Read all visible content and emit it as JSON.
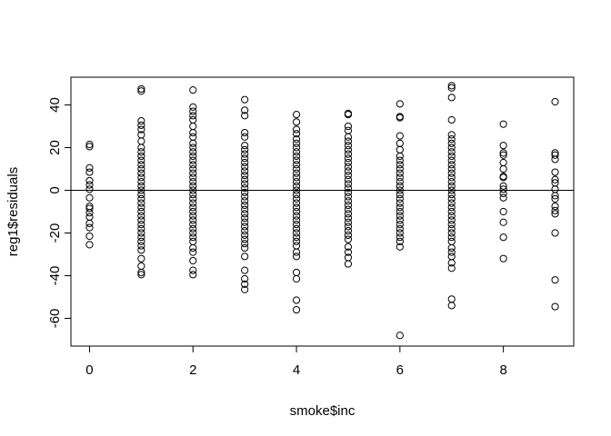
{
  "chart_data": {
    "type": "scatter",
    "title": "",
    "xlabel": "smoke$inc",
    "ylabel": "reg1$residuals",
    "xlim": [
      -0.36,
      9.36
    ],
    "ylim": [
      -73,
      53
    ],
    "x_ticks": [
      0,
      2,
      4,
      6,
      8
    ],
    "x_tick_labels": [
      "0",
      "2",
      "4",
      "6",
      "8"
    ],
    "y_ticks": [
      -60,
      -40,
      -20,
      0,
      20,
      40
    ],
    "y_tick_labels": [
      "-60",
      "-40",
      "-20",
      "0",
      "20",
      "40"
    ],
    "reference_line": {
      "y": 0
    },
    "grid": false,
    "legend": "none",
    "marker": "open-circle",
    "series": [
      {
        "points": [
          [
            0,
            21.5
          ],
          [
            0,
            20.5
          ],
          [
            0,
            10.5
          ],
          [
            0,
            8.5
          ],
          [
            0,
            4.5
          ],
          [
            0,
            2.5
          ],
          [
            0,
            0.5
          ],
          [
            0,
            -3.5
          ],
          [
            0,
            -7.5
          ],
          [
            0,
            -8.5
          ],
          [
            0,
            -10.5
          ],
          [
            0,
            -12.5
          ],
          [
            0,
            -15.5
          ],
          [
            0,
            -17.5
          ],
          [
            0,
            -21.5
          ],
          [
            0,
            -25.5
          ],
          [
            1,
            47.5
          ],
          [
            1,
            46.5
          ],
          [
            1,
            32.5
          ],
          [
            1,
            30.5
          ],
          [
            1,
            28.5
          ],
          [
            1,
            26
          ],
          [
            1,
            23
          ],
          [
            1,
            20
          ],
          [
            1,
            18
          ],
          [
            1,
            16
          ],
          [
            1,
            14
          ],
          [
            1,
            12
          ],
          [
            1,
            10
          ],
          [
            1,
            8
          ],
          [
            1,
            6
          ],
          [
            1,
            4
          ],
          [
            1,
            2
          ],
          [
            1,
            0
          ],
          [
            1,
            -2
          ],
          [
            1,
            -4
          ],
          [
            1,
            -6
          ],
          [
            1,
            -8
          ],
          [
            1,
            -10
          ],
          [
            1,
            -12
          ],
          [
            1,
            -14
          ],
          [
            1,
            -16
          ],
          [
            1,
            -18
          ],
          [
            1,
            -20
          ],
          [
            1,
            -22
          ],
          [
            1,
            -24
          ],
          [
            1,
            -26
          ],
          [
            1,
            -28
          ],
          [
            1,
            -32
          ],
          [
            1,
            -35.5
          ],
          [
            1,
            -38.5
          ],
          [
            1,
            -39.5
          ],
          [
            2,
            47
          ],
          [
            2,
            39
          ],
          [
            2,
            37
          ],
          [
            2,
            35
          ],
          [
            2,
            33
          ],
          [
            2,
            30
          ],
          [
            2,
            27
          ],
          [
            2,
            25
          ],
          [
            2,
            22
          ],
          [
            2,
            20
          ],
          [
            2,
            18
          ],
          [
            2,
            16
          ],
          [
            2,
            14
          ],
          [
            2,
            12
          ],
          [
            2,
            10
          ],
          [
            2,
            8
          ],
          [
            2,
            6
          ],
          [
            2,
            4
          ],
          [
            2,
            2
          ],
          [
            2,
            0
          ],
          [
            2,
            -2
          ],
          [
            2,
            -4
          ],
          [
            2,
            -6
          ],
          [
            2,
            -8
          ],
          [
            2,
            -10
          ],
          [
            2,
            -12
          ],
          [
            2,
            -14
          ],
          [
            2,
            -16
          ],
          [
            2,
            -18
          ],
          [
            2,
            -20
          ],
          [
            2,
            -22
          ],
          [
            2,
            -24
          ],
          [
            2,
            -27
          ],
          [
            2,
            -29
          ],
          [
            2,
            -33
          ],
          [
            2,
            -37.5
          ],
          [
            2,
            -39.5
          ],
          [
            3,
            42.5
          ],
          [
            3,
            37.5
          ],
          [
            3,
            35
          ],
          [
            3,
            27
          ],
          [
            3,
            25
          ],
          [
            3,
            21
          ],
          [
            3,
            19
          ],
          [
            3,
            17
          ],
          [
            3,
            15
          ],
          [
            3,
            13
          ],
          [
            3,
            11
          ],
          [
            3,
            9
          ],
          [
            3,
            7
          ],
          [
            3,
            5
          ],
          [
            3,
            3
          ],
          [
            3,
            1
          ],
          [
            3,
            -1
          ],
          [
            3,
            -3
          ],
          [
            3,
            -5
          ],
          [
            3,
            -7
          ],
          [
            3,
            -9
          ],
          [
            3,
            -11
          ],
          [
            3,
            -13
          ],
          [
            3,
            -15
          ],
          [
            3,
            -17
          ],
          [
            3,
            -19
          ],
          [
            3,
            -21
          ],
          [
            3,
            -23
          ],
          [
            3,
            -25
          ],
          [
            3,
            -27
          ],
          [
            3,
            -31
          ],
          [
            3,
            -37.5
          ],
          [
            3,
            -41.5
          ],
          [
            3,
            -44
          ],
          [
            3,
            -46.5
          ],
          [
            4,
            35.5
          ],
          [
            4,
            32
          ],
          [
            4,
            28.5
          ],
          [
            4,
            26.5
          ],
          [
            4,
            24
          ],
          [
            4,
            22
          ],
          [
            4,
            20
          ],
          [
            4,
            18
          ],
          [
            4,
            16
          ],
          [
            4,
            14
          ],
          [
            4,
            12
          ],
          [
            4,
            10
          ],
          [
            4,
            8
          ],
          [
            4,
            6
          ],
          [
            4,
            4
          ],
          [
            4,
            2
          ],
          [
            4,
            0
          ],
          [
            4,
            -2
          ],
          [
            4,
            -4
          ],
          [
            4,
            -6
          ],
          [
            4,
            -8
          ],
          [
            4,
            -10
          ],
          [
            4,
            -12
          ],
          [
            4,
            -14
          ],
          [
            4,
            -16
          ],
          [
            4,
            -18
          ],
          [
            4,
            -20
          ],
          [
            4,
            -22
          ],
          [
            4,
            -24
          ],
          [
            4,
            -26
          ],
          [
            4,
            -29
          ],
          [
            4,
            -31
          ],
          [
            4,
            -38.5
          ],
          [
            4,
            -41.5
          ],
          [
            4,
            -51.5
          ],
          [
            4,
            -56
          ],
          [
            5,
            36
          ],
          [
            5,
            35.5
          ],
          [
            5,
            30
          ],
          [
            5,
            28
          ],
          [
            5,
            25
          ],
          [
            5,
            23
          ],
          [
            5,
            21
          ],
          [
            5,
            19
          ],
          [
            5,
            17
          ],
          [
            5,
            15
          ],
          [
            5,
            13
          ],
          [
            5,
            11
          ],
          [
            5,
            9
          ],
          [
            5,
            7
          ],
          [
            5,
            5
          ],
          [
            5,
            3
          ],
          [
            5,
            1
          ],
          [
            5,
            -1
          ],
          [
            5,
            -3
          ],
          [
            5,
            -5
          ],
          [
            5,
            -7
          ],
          [
            5,
            -9
          ],
          [
            5,
            -11
          ],
          [
            5,
            -13
          ],
          [
            5,
            -15
          ],
          [
            5,
            -17
          ],
          [
            5,
            -19
          ],
          [
            5,
            -21
          ],
          [
            5,
            -23
          ],
          [
            5,
            -26.5
          ],
          [
            5,
            -29
          ],
          [
            5,
            -31.5
          ],
          [
            5,
            -34.5
          ],
          [
            6,
            40.5
          ],
          [
            6,
            34.5
          ],
          [
            6,
            34
          ],
          [
            6,
            25.5
          ],
          [
            6,
            22
          ],
          [
            6,
            19
          ],
          [
            6,
            16
          ],
          [
            6,
            14
          ],
          [
            6,
            12
          ],
          [
            6,
            10
          ],
          [
            6,
            8
          ],
          [
            6,
            6
          ],
          [
            6,
            4
          ],
          [
            6,
            2
          ],
          [
            6,
            0
          ],
          [
            6,
            -2
          ],
          [
            6,
            -4
          ],
          [
            6,
            -6
          ],
          [
            6,
            -8
          ],
          [
            6,
            -10
          ],
          [
            6,
            -12
          ],
          [
            6,
            -14
          ],
          [
            6,
            -16
          ],
          [
            6,
            -18
          ],
          [
            6,
            -20
          ],
          [
            6,
            -22
          ],
          [
            6,
            -24
          ],
          [
            6,
            -26.5
          ],
          [
            6,
            -68
          ],
          [
            7,
            49
          ],
          [
            7,
            48
          ],
          [
            7,
            43.5
          ],
          [
            7,
            33
          ],
          [
            7,
            26
          ],
          [
            7,
            24
          ],
          [
            7,
            22
          ],
          [
            7,
            20
          ],
          [
            7,
            18
          ],
          [
            7,
            16
          ],
          [
            7,
            14
          ],
          [
            7,
            12
          ],
          [
            7,
            10
          ],
          [
            7,
            8
          ],
          [
            7,
            6
          ],
          [
            7,
            4
          ],
          [
            7,
            2
          ],
          [
            7,
            0
          ],
          [
            7,
            -2
          ],
          [
            7,
            -4
          ],
          [
            7,
            -6
          ],
          [
            7,
            -8
          ],
          [
            7,
            -10
          ],
          [
            7,
            -12
          ],
          [
            7,
            -14
          ],
          [
            7,
            -16
          ],
          [
            7,
            -18
          ],
          [
            7,
            -20
          ],
          [
            7,
            -22
          ],
          [
            7,
            -24
          ],
          [
            7,
            -27
          ],
          [
            7,
            -29
          ],
          [
            7,
            -31
          ],
          [
            7,
            -34
          ],
          [
            7,
            -36.5
          ],
          [
            7,
            -51
          ],
          [
            7,
            -54
          ],
          [
            8,
            31
          ],
          [
            8,
            21
          ],
          [
            8,
            17.5
          ],
          [
            8,
            16.5
          ],
          [
            8,
            13
          ],
          [
            8,
            10
          ],
          [
            8,
            6.5
          ],
          [
            8,
            6
          ],
          [
            8,
            2
          ],
          [
            8,
            0.5
          ],
          [
            8,
            -1.5
          ],
          [
            8,
            -3.5
          ],
          [
            8,
            -10
          ],
          [
            8,
            -15
          ],
          [
            8,
            -22
          ],
          [
            8,
            -32
          ],
          [
            9,
            41.5
          ],
          [
            9,
            17.5
          ],
          [
            9,
            16.5
          ],
          [
            9,
            14.5
          ],
          [
            9,
            8.5
          ],
          [
            9,
            5
          ],
          [
            9,
            3.5
          ],
          [
            9,
            0.5
          ],
          [
            9,
            -2.5
          ],
          [
            9,
            -4
          ],
          [
            9,
            -7.5
          ],
          [
            9,
            -9.5
          ],
          [
            9,
            -11
          ],
          [
            9,
            -20
          ],
          [
            9,
            -42
          ],
          [
            9,
            -54.5
          ]
        ]
      }
    ]
  }
}
